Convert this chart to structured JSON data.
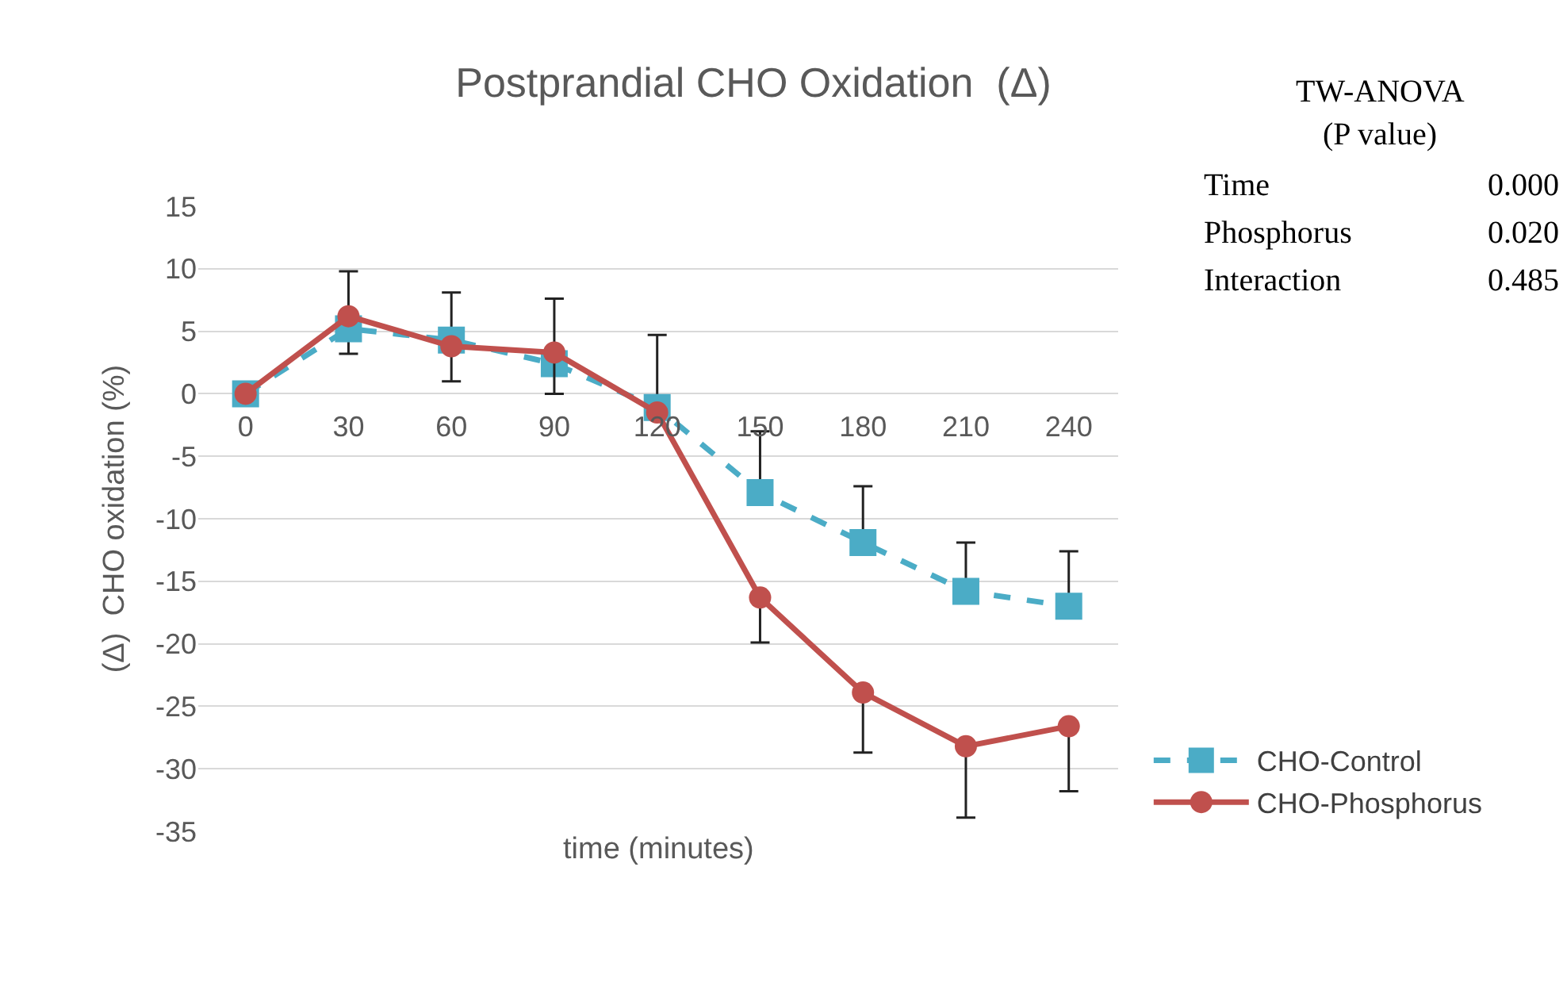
{
  "chart_data": {
    "type": "line",
    "title": "Postprandial CHO Oxidation  (Δ)",
    "xlabel": "time (minutes)",
    "ylabel": "(Δ)  CHO oxidation (%)",
    "categories": [
      "0",
      "30",
      "60",
      "90",
      "120",
      "150",
      "180",
      "210",
      "240"
    ],
    "series": [
      {
        "name": "CHO-Control",
        "color": "#4bacc6",
        "marker": "square",
        "line_style": "dashed",
        "values": [
          0,
          5.2,
          4.3,
          2.4,
          -1.1,
          -7.9,
          -11.9,
          -15.8,
          -17.0
        ],
        "errors": [
          null,
          [
            3.2,
            5.2
          ],
          [
            4.3,
            8.1
          ],
          [
            2.4,
            7.6
          ],
          [
            -1.1,
            4.7
          ],
          [
            -7.9,
            -3.0
          ],
          [
            -11.9,
            -7.4
          ],
          [
            -15.8,
            -11.9
          ],
          [
            -17.0,
            -12.6
          ]
        ]
      },
      {
        "name": "CHO-Phosphorus",
        "color": "#c0504d",
        "marker": "circle",
        "line_style": "solid",
        "values": [
          0,
          6.2,
          3.8,
          3.3,
          -1.5,
          -16.3,
          -23.9,
          -28.2,
          -26.6
        ],
        "errors": [
          null,
          [
            6.2,
            9.8
          ],
          [
            1.0,
            3.8
          ],
          [
            0,
            3.3
          ],
          null,
          [
            -19.9,
            -16.3
          ],
          [
            -28.7,
            -23.9
          ],
          [
            -33.9,
            -28.2
          ],
          [
            -31.8,
            -26.6
          ]
        ]
      }
    ],
    "ylim": [
      -35,
      15
    ],
    "yticks": [
      -35,
      -30,
      -25,
      -20,
      -15,
      -10,
      -5,
      0,
      5,
      10,
      15
    ],
    "grid": "y",
    "legend": "right",
    "annotations": [
      "TW-ANOVA",
      "(P value)",
      "Time",
      "0.000",
      "Phosphorus",
      "0.020",
      "Interaction",
      "0.485"
    ]
  }
}
